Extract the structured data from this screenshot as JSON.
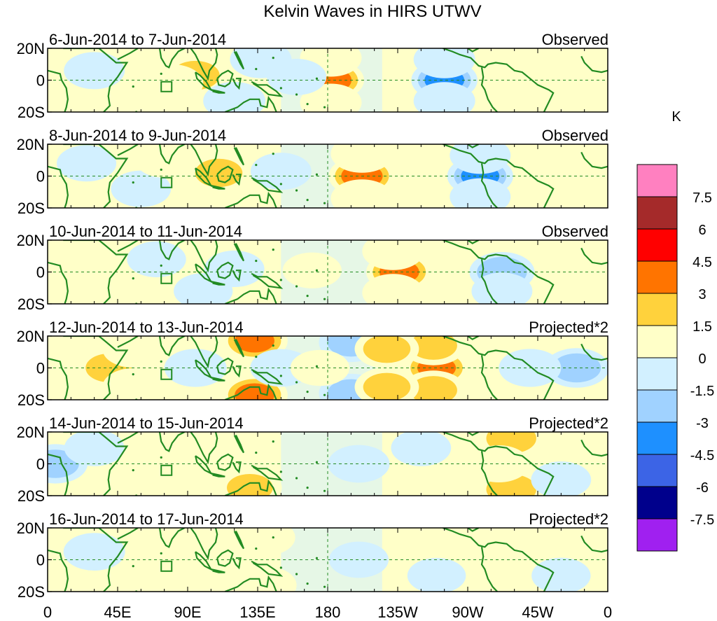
{
  "chart_data": {
    "type": "heatmap",
    "title": "Kelvin Waves in HIRS UTWV",
    "colorbar": {
      "unit": "K",
      "levels": [
        "7.5",
        "6",
        "4.5",
        "3",
        "1.5",
        "0",
        "-1.5",
        "-3",
        "-4.5",
        "-6",
        "-7.5"
      ],
      "colors": [
        "#ff80c0",
        "#a52a2a",
        "#ff0000",
        "#ff7400",
        "#ffd23c",
        "#ffffc8",
        "#d2f0ff",
        "#a0d2ff",
        "#1e90ff",
        "#3c64e6",
        "#00008c",
        "#a020f0"
      ]
    },
    "x_ticks": [
      "0",
      "45E",
      "90E",
      "135E",
      "180",
      "135W",
      "90W",
      "45W",
      "0"
    ],
    "y_ticks": [
      "20N",
      "0",
      "20S"
    ],
    "panels": [
      {
        "dates": "6-Jun-2014 to 7-Jun-2014",
        "label": "Observed",
        "blobs": [
          {
            "lon": 182,
            "lat": 0,
            "val": 4.5
          },
          {
            "lon": 182,
            "lat": 14,
            "val": 2.0
          },
          {
            "lon": 182,
            "lat": -14,
            "val": 2.0
          },
          {
            "lon": 255,
            "lat": 0,
            "val": -4.2
          },
          {
            "lon": 255,
            "lat": 13,
            "val": -2.0
          },
          {
            "lon": 255,
            "lat": -13,
            "val": -2.0
          },
          {
            "lon": 95,
            "lat": 3,
            "val": 3.2
          },
          {
            "lon": 80,
            "lat": -2,
            "val": 2.2
          },
          {
            "lon": 137,
            "lat": 13,
            "val": -2.0
          },
          {
            "lon": 120,
            "lat": -13,
            "val": -2.2
          },
          {
            "lon": 30,
            "lat": 6,
            "val": -1.8
          },
          {
            "lon": 300,
            "lat": 0,
            "val": 1.8
          },
          {
            "lon": 340,
            "lat": -5,
            "val": 1.4
          },
          {
            "lon": 160,
            "lat": 2,
            "val": -1.5
          }
        ]
      },
      {
        "dates": "8-Jun-2014 to 9-Jun-2014",
        "label": "Observed",
        "blobs": [
          {
            "lon": 202,
            "lat": 0,
            "val": 4.5
          },
          {
            "lon": 202,
            "lat": 14,
            "val": 2.2
          },
          {
            "lon": 202,
            "lat": -14,
            "val": 2.2
          },
          {
            "lon": 278,
            "lat": 0,
            "val": -4.0
          },
          {
            "lon": 278,
            "lat": 13,
            "val": -1.8
          },
          {
            "lon": 278,
            "lat": -13,
            "val": -1.8
          },
          {
            "lon": 110,
            "lat": 2,
            "val": 3.0
          },
          {
            "lon": 150,
            "lat": 3,
            "val": -1.8
          },
          {
            "lon": 60,
            "lat": -8,
            "val": -1.6
          },
          {
            "lon": 320,
            "lat": 0,
            "val": 1.4
          },
          {
            "lon": 25,
            "lat": 8,
            "val": -1.5
          },
          {
            "lon": 75,
            "lat": 10,
            "val": 1.2
          }
        ]
      },
      {
        "dates": "10-Jun-2014 to 11-Jun-2014",
        "label": "Observed",
        "blobs": [
          {
            "lon": 226,
            "lat": 0,
            "val": 4.2
          },
          {
            "lon": 222,
            "lat": 13,
            "val": 2.0
          },
          {
            "lon": 222,
            "lat": -13,
            "val": 2.0
          },
          {
            "lon": 292,
            "lat": 0,
            "val": -3.5
          },
          {
            "lon": 292,
            "lat": -12,
            "val": -1.8
          },
          {
            "lon": 120,
            "lat": 2,
            "val": -1.6
          },
          {
            "lon": 170,
            "lat": 1,
            "val": 1.4
          },
          {
            "lon": 355,
            "lat": 0,
            "val": 1.8
          },
          {
            "lon": 15,
            "lat": 0,
            "val": 1.6
          },
          {
            "lon": 70,
            "lat": 8,
            "val": -1.4
          },
          {
            "lon": 100,
            "lat": -12,
            "val": -1.4
          }
        ]
      },
      {
        "dates": "12-Jun-2014 to 13-Jun-2014",
        "label": "Projected*2",
        "blobs": [
          {
            "lon": 250,
            "lat": 0,
            "val": 4.0
          },
          {
            "lon": 248,
            "lat": 14,
            "val": 3.0
          },
          {
            "lon": 248,
            "lat": -14,
            "val": 3.0
          },
          {
            "lon": 133,
            "lat": 17,
            "val": 4.2
          },
          {
            "lon": 133,
            "lat": -17,
            "val": 4.2
          },
          {
            "lon": 40,
            "lat": 0,
            "val": 3.2
          },
          {
            "lon": 55,
            "lat": 12,
            "val": 2.0
          },
          {
            "lon": 55,
            "lat": -12,
            "val": 2.0
          },
          {
            "lon": 95,
            "lat": 0,
            "val": -2.2
          },
          {
            "lon": 150,
            "lat": 0,
            "val": -2.0
          },
          {
            "lon": 195,
            "lat": 16,
            "val": -3.0
          },
          {
            "lon": 195,
            "lat": -16,
            "val": -3.0
          },
          {
            "lon": 218,
            "lat": 12,
            "val": 3.0
          },
          {
            "lon": 218,
            "lat": -12,
            "val": 3.0
          },
          {
            "lon": 340,
            "lat": 0,
            "val": -3.2
          },
          {
            "lon": 310,
            "lat": 0,
            "val": -2.2
          },
          {
            "lon": 175,
            "lat": 0,
            "val": 1.4
          },
          {
            "lon": 10,
            "lat": 14,
            "val": 1.6
          }
        ]
      },
      {
        "dates": "14-Jun-2014 to 15-Jun-2014",
        "label": "Projected*2",
        "blobs": [
          {
            "lon": 298,
            "lat": 16,
            "val": 3.5
          },
          {
            "lon": 298,
            "lat": -16,
            "val": 3.5
          },
          {
            "lon": 290,
            "lat": 0,
            "val": 1.8
          },
          {
            "lon": 5,
            "lat": 0,
            "val": -3.0
          },
          {
            "lon": 130,
            "lat": -15,
            "val": 2.8
          },
          {
            "lon": 130,
            "lat": 15,
            "val": 2.0
          },
          {
            "lon": 100,
            "lat": 0,
            "val": 1.4
          },
          {
            "lon": 60,
            "lat": 0,
            "val": 1.4
          },
          {
            "lon": 200,
            "lat": 0,
            "val": -2.0
          },
          {
            "lon": 240,
            "lat": 10,
            "val": -1.6
          },
          {
            "lon": 30,
            "lat": 10,
            "val": -1.6
          },
          {
            "lon": 330,
            "lat": -10,
            "val": -1.6
          }
        ]
      },
      {
        "dates": "16-Jun-2014 to 17-Jun-2014",
        "label": "Projected*2",
        "blobs": [
          {
            "lon": 300,
            "lat": 0,
            "val": 2.0
          },
          {
            "lon": 300,
            "lat": 12,
            "val": 1.5
          },
          {
            "lon": 140,
            "lat": -16,
            "val": 2.2
          },
          {
            "lon": 140,
            "lat": 14,
            "val": 1.5
          },
          {
            "lon": 60,
            "lat": 0,
            "val": 1.4
          },
          {
            "lon": 100,
            "lat": 2,
            "val": 1.3
          },
          {
            "lon": 200,
            "lat": 0,
            "val": -1.5
          },
          {
            "lon": 30,
            "lat": 5,
            "val": -2.0
          },
          {
            "lon": 250,
            "lat": -10,
            "val": -1.3
          },
          {
            "lon": 340,
            "lat": 6,
            "val": 1.3
          },
          {
            "lon": 330,
            "lat": -10,
            "val": -1.4
          }
        ]
      }
    ]
  }
}
